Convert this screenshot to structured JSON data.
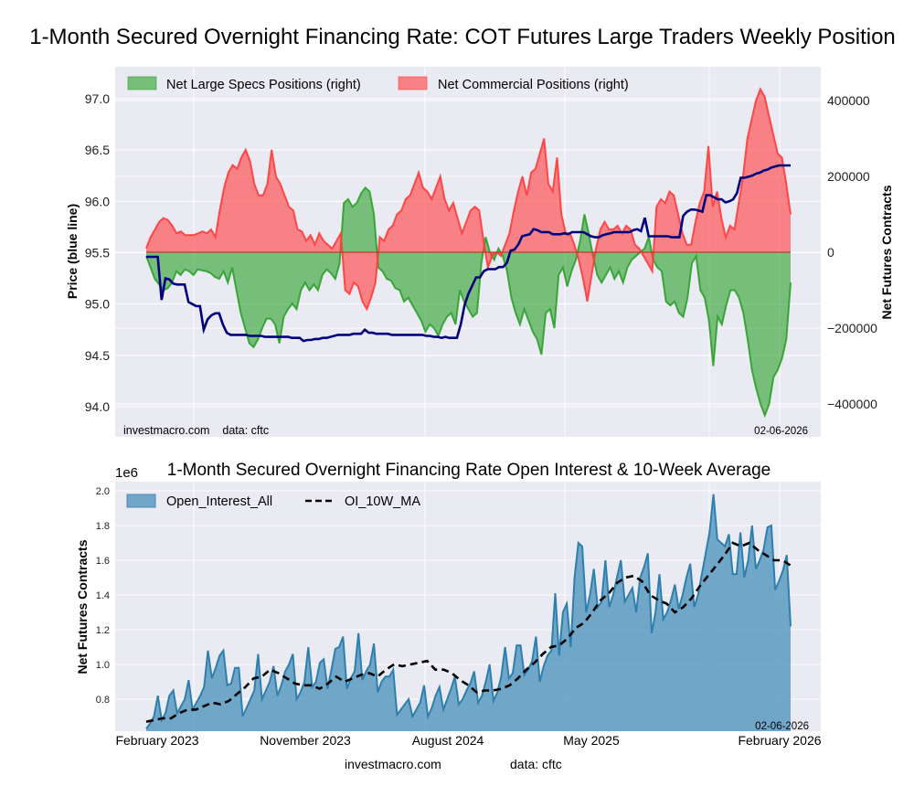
{
  "chart_data": [
    {
      "type": "area",
      "title": "1-Month Secured Overnight Financing Rate: COT Futures Large Traders Weekly Position",
      "ylabel_left": "Price (blue line)",
      "ylabel_right": "Net Futures Contracts",
      "yticks_left": [
        "94.0",
        "94.5",
        "95.0",
        "95.5",
        "96.0",
        "96.5",
        "97.0"
      ],
      "ylim_left": [
        93.8,
        97.2
      ],
      "yticks_right": [
        "−400000",
        "−200000",
        "0",
        "200000",
        "400000"
      ],
      "yticks_right_values": [
        -400000,
        -200000,
        0,
        200000,
        400000
      ],
      "ylim_right": [
        -480000,
        490000
      ],
      "grid": true,
      "legend_position": "top-left",
      "footer_left": "investmacro.com    data: cftc",
      "footer_right": "02-06-2026",
      "colors": {
        "specs": "#2ca02c",
        "commercial": "#ff3b3b",
        "price": "#00007f",
        "bg": "#eaeaf2"
      },
      "series": [
        {
          "name": "Net Large Specs Positions (right)",
          "values": [
            -10000,
            -40000,
            -70000,
            -85000,
            -100000,
            -95000,
            -80000,
            -50000,
            -60000,
            -45000,
            -50000,
            -60000,
            -45000,
            -48000,
            -50000,
            -55000,
            -65000,
            -70000,
            -50000,
            -80000,
            -40000,
            -100000,
            -160000,
            -200000,
            -240000,
            -250000,
            -230000,
            -200000,
            -175000,
            -175000,
            -190000,
            -240000,
            -170000,
            -150000,
            -135000,
            -150000,
            -100000,
            -80000,
            -100000,
            -85000,
            -100000,
            -60000,
            -45000,
            -55000,
            -70000,
            -30000,
            130000,
            140000,
            120000,
            130000,
            155000,
            170000,
            160000,
            100000,
            -40000,
            -50000,
            -70000,
            -75000,
            -95000,
            -100000,
            -130000,
            -120000,
            -140000,
            -160000,
            -180000,
            -210000,
            -190000,
            -200000,
            -220000,
            -190000,
            -170000,
            -160000,
            -190000,
            -100000,
            -130000,
            -150000,
            -170000,
            -160000,
            -30000,
            40000,
            0,
            -20000,
            10000,
            -10000,
            -50000,
            -120000,
            -160000,
            -190000,
            -150000,
            -180000,
            -210000,
            -230000,
            -270000,
            -160000,
            -150000,
            -200000,
            -60000,
            -40000,
            -90000,
            -50000,
            -20000,
            30000,
            100000,
            50000,
            -10000,
            -60000,
            -80000,
            -60000,
            -40000,
            -70000,
            -50000,
            -80000,
            -40000,
            -20000,
            -10000,
            0,
            10000,
            40000,
            -20000,
            -40000,
            -50000,
            -130000,
            -140000,
            -130000,
            -160000,
            -170000,
            -120000,
            -30000,
            -10000,
            -100000,
            -120000,
            -180000,
            -300000,
            -170000,
            -190000,
            -140000,
            -100000,
            -100000,
            -120000,
            -160000,
            -230000,
            -310000,
            -360000,
            -400000,
            -430000,
            -400000,
            -330000,
            -310000,
            -280000,
            -230000,
            -80000
          ],
          "color": "#2ca02c"
        },
        {
          "name": "Net Commercial Positions (right)",
          "values": [
            10000,
            40000,
            60000,
            80000,
            90000,
            85000,
            70000,
            50000,
            55000,
            45000,
            45000,
            45000,
            50000,
            55000,
            50000,
            60000,
            40000,
            110000,
            170000,
            210000,
            230000,
            220000,
            250000,
            270000,
            240000,
            180000,
            150000,
            150000,
            180000,
            270000,
            200000,
            180000,
            150000,
            120000,
            110000,
            60000,
            55000,
            30000,
            45000,
            20000,
            50000,
            30000,
            20000,
            10000,
            30000,
            50000,
            -100000,
            -110000,
            -80000,
            -90000,
            -130000,
            -150000,
            -120000,
            -80000,
            40000,
            30000,
            60000,
            70000,
            100000,
            110000,
            140000,
            150000,
            180000,
            210000,
            170000,
            160000,
            140000,
            170000,
            200000,
            140000,
            110000,
            130000,
            90000,
            50000,
            80000,
            110000,
            120000,
            110000,
            30000,
            -40000,
            -10000,
            0,
            -10000,
            20000,
            50000,
            110000,
            160000,
            200000,
            150000,
            210000,
            220000,
            260000,
            300000,
            180000,
            160000,
            250000,
            100000,
            50000,
            50000,
            20000,
            -20000,
            -70000,
            -130000,
            -60000,
            10000,
            60000,
            80000,
            60000,
            60000,
            70000,
            50000,
            70000,
            60000,
            20000,
            10000,
            -10000,
            -30000,
            -50000,
            120000,
            140000,
            130000,
            160000,
            150000,
            100000,
            50000,
            20000,
            20000,
            80000,
            130000,
            160000,
            280000,
            120000,
            160000,
            90000,
            40000,
            70000,
            60000,
            130000,
            200000,
            300000,
            350000,
            400000,
            430000,
            410000,
            360000,
            310000,
            260000,
            250000,
            180000,
            100000
          ],
          "color": "#ff3b3b"
        },
        {
          "name": "Price (blue line)",
          "values": [
            95.46,
            95.46,
            95.46,
            95.46,
            95.04,
            95.25,
            95.24,
            95.2,
            95.19,
            95.19,
            95.19,
            95.02,
            95.0,
            94.98,
            94.98,
            94.75,
            94.85,
            94.89,
            94.91,
            94.91,
            94.8,
            94.72,
            94.7,
            94.7,
            94.7,
            94.7,
            94.7,
            94.69,
            94.69,
            94.69,
            94.69,
            94.68,
            94.68,
            94.68,
            94.68,
            94.68,
            94.68,
            94.68,
            94.67,
            94.67,
            94.67,
            94.64,
            94.65,
            94.65,
            94.66,
            94.66,
            94.67,
            94.67,
            94.68,
            94.69,
            94.7,
            94.7,
            94.7,
            94.7,
            94.71,
            94.71,
            94.71,
            94.75,
            94.72,
            94.72,
            94.71,
            94.71,
            94.71,
            94.71,
            94.7,
            94.7,
            94.7,
            94.7,
            94.7,
            94.7,
            94.7,
            94.7,
            94.7,
            94.69,
            94.69,
            94.68,
            94.68,
            94.67,
            94.68,
            94.67,
            94.67,
            94.67,
            94.8,
            94.99,
            95.1,
            95.18,
            95.26,
            95.26,
            95.32,
            95.34,
            95.34,
            95.34,
            95.36,
            95.36,
            95.4,
            95.52,
            95.53,
            95.58,
            95.66,
            95.67,
            95.68,
            95.73,
            95.72,
            95.7,
            95.7,
            95.7,
            95.68,
            95.68,
            95.68,
            95.69,
            95.68,
            95.7,
            95.7,
            95.7,
            95.7,
            95.68,
            95.66,
            95.65,
            95.65,
            95.67,
            95.68,
            95.69,
            95.7,
            95.7,
            95.7,
            95.7,
            95.7,
            95.72,
            95.73,
            95.71,
            95.84,
            95.66,
            95.66,
            95.66,
            95.66,
            95.66,
            95.66,
            95.65,
            95.65,
            95.65,
            95.86,
            95.9,
            95.92,
            95.92,
            95.91,
            95.9,
            96.06,
            96.06,
            96.04,
            96.02,
            96.02,
            95.99,
            96.0,
            96.02,
            96.08,
            96.23,
            96.23,
            96.24,
            96.25,
            96.27,
            96.28,
            96.3,
            96.31,
            96.33,
            96.34,
            96.35,
            96.35,
            96.35,
            96.35
          ],
          "color": "#00007f"
        }
      ]
    },
    {
      "type": "area",
      "title": "1-Month Secured Overnight Financing Rate Open Interest & 10-Week Average",
      "ylabel": "Net Futures Contracts",
      "y_multiplier": "1e6",
      "yticks": [
        "0.8",
        "1.0",
        "1.2",
        "1.4",
        "1.6",
        "1.8",
        "2.0"
      ],
      "ylim": [
        0.61,
        2.02
      ],
      "xticks": [
        "February 2023",
        "November 2023",
        "August 2024",
        "May 2025",
        "February 2026"
      ],
      "grid": true,
      "legend_position": "top-left",
      "corner_label": "02-06-2026",
      "footer": {
        "site": "investmacro.com",
        "source": "data: cftc"
      },
      "colors": {
        "oi": "#5b9bc1",
        "ma": "#000000",
        "bg": "#eaeaf2"
      },
      "series": [
        {
          "name": "Open_Interest_All",
          "values": [
            0.63,
            0.66,
            0.7,
            0.82,
            0.68,
            0.72,
            0.82,
            0.85,
            0.72,
            0.76,
            0.8,
            0.91,
            0.74,
            0.78,
            0.82,
            0.87,
            1.08,
            0.92,
            0.98,
            1.05,
            1.08,
            0.88,
            0.89,
            0.98,
            0.98,
            0.7,
            0.75,
            0.8,
            0.85,
            1.06,
            0.8,
            0.85,
            0.9,
            0.99,
            0.82,
            0.88,
            0.96,
            1.0,
            1.06,
            0.8,
            0.84,
            0.9,
            1.1,
            0.87,
            0.9,
            1.01,
            1.03,
            0.86,
            0.97,
            1.09,
            1.1,
            1.16,
            0.86,
            0.92,
            0.96,
            1.18,
            0.91,
            0.96,
            1.0,
            1.12,
            0.84,
            0.9,
            0.93,
            0.93,
            0.97,
            0.71,
            0.74,
            0.77,
            0.8,
            0.7,
            0.74,
            0.78,
            0.88,
            0.7,
            0.75,
            0.82,
            0.87,
            0.74,
            0.8,
            0.86,
            0.93,
            0.77,
            0.8,
            0.85,
            0.89,
            0.96,
            0.78,
            0.82,
            0.9,
            1.0,
            0.79,
            0.84,
            0.93,
            1.1,
            0.92,
            0.95,
            1.11,
            1.11,
            0.94,
            0.97,
            1.02,
            1.16,
            0.9,
            0.99,
            1.05,
            1.08,
            1.41,
            1.05,
            1.3,
            1.35,
            1.1,
            1.5,
            1.7,
            1.68,
            1.3,
            1.4,
            1.55,
            1.33,
            1.36,
            1.6,
            1.33,
            1.4,
            1.5,
            1.6,
            1.36,
            1.4,
            1.44,
            1.3,
            1.5,
            1.56,
            1.64,
            1.18,
            1.3,
            1.52,
            1.26,
            1.3,
            1.37,
            1.46,
            1.32,
            1.4,
            1.5,
            1.58,
            1.33,
            1.4,
            1.52,
            1.64,
            1.76,
            1.98,
            1.72,
            1.7,
            1.68,
            1.75,
            1.52,
            1.52,
            1.76,
            1.5,
            1.6,
            1.8,
            1.55,
            1.6,
            1.66,
            1.79,
            1.8,
            1.43,
            1.48,
            1.54,
            1.63,
            1.22
          ],
          "color": "#5b9bc1"
        },
        {
          "name": "OI_10W_MA",
          "values": [
            0.67,
            0.68,
            0.69,
            0.69,
            0.72,
            0.74,
            0.74,
            0.76,
            0.78,
            0.77,
            0.79,
            0.83,
            0.87,
            0.92,
            0.93,
            0.97,
            0.95,
            0.92,
            0.89,
            0.88,
            0.88,
            0.86,
            0.89,
            0.93,
            0.9,
            0.92,
            0.94,
            0.95,
            0.93,
            0.97,
            1.0,
            0.99,
            1.0,
            1.01,
            1.02,
            0.97,
            0.97,
            0.95,
            0.91,
            0.88,
            0.84,
            0.85,
            0.85,
            0.86,
            0.88,
            0.92,
            0.97,
            1.01,
            1.06,
            1.1,
            1.11,
            1.15,
            1.21,
            1.24,
            1.3,
            1.37,
            1.41,
            1.47,
            1.5,
            1.51,
            1.48,
            1.4,
            1.37,
            1.35,
            1.3,
            1.33,
            1.38,
            1.45,
            1.51,
            1.57,
            1.63,
            1.7,
            1.68,
            1.7,
            1.66,
            1.63,
            1.6,
            1.6,
            1.57
          ],
          "color": "#000000"
        }
      ]
    }
  ]
}
